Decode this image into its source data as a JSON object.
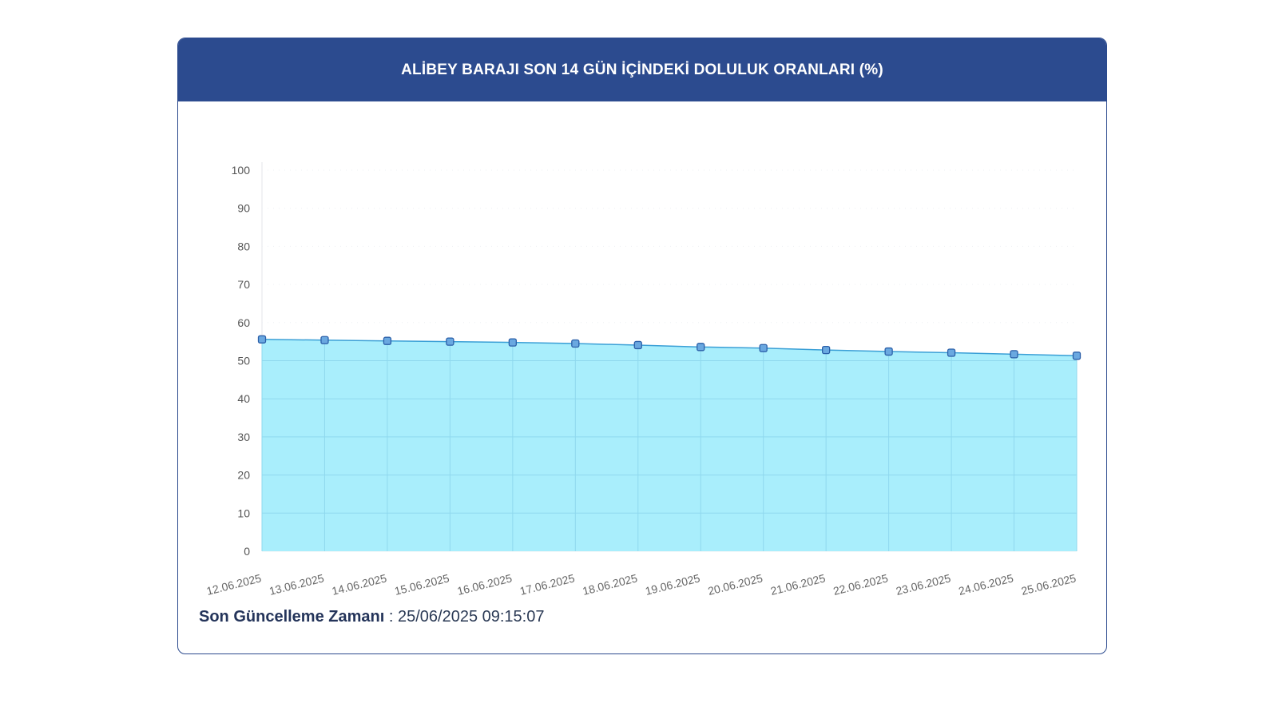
{
  "header": {
    "title": "ALİBEY BARAJI SON 14 GÜN İÇİNDEKİ DOLULUK ORANLARI (%)"
  },
  "footer": {
    "label": "Son Güncelleme Zamanı",
    "separator": " : ",
    "value": "25/06/2025 09:15:07"
  },
  "colors": {
    "header_bg": "#2c4b8f",
    "area_fill": "#a9eefc",
    "line": "#3a9fd6",
    "marker_fill": "#6aa8e0",
    "marker_stroke": "#2b5fa8"
  },
  "chart_data": {
    "type": "area",
    "title": "ALİBEY BARAJI SON 14 GÜN İÇİNDEKİ DOLULUK ORANLARI (%)",
    "x": [
      "12.06.2025",
      "13.06.2025",
      "14.06.2025",
      "15.06.2025",
      "16.06.2025",
      "17.06.2025",
      "18.06.2025",
      "19.06.2025",
      "20.06.2025",
      "21.06.2025",
      "22.06.2025",
      "23.06.2025",
      "24.06.2025",
      "25.06.2025"
    ],
    "values": [
      55.6,
      55.4,
      55.2,
      55.0,
      54.8,
      54.5,
      54.1,
      53.6,
      53.3,
      52.8,
      52.4,
      52.1,
      51.7,
      51.3
    ],
    "yticks": [
      0,
      10,
      20,
      30,
      40,
      50,
      60,
      70,
      80,
      90,
      100
    ],
    "ylim": [
      0,
      100
    ],
    "grid": true,
    "legend": "none"
  }
}
